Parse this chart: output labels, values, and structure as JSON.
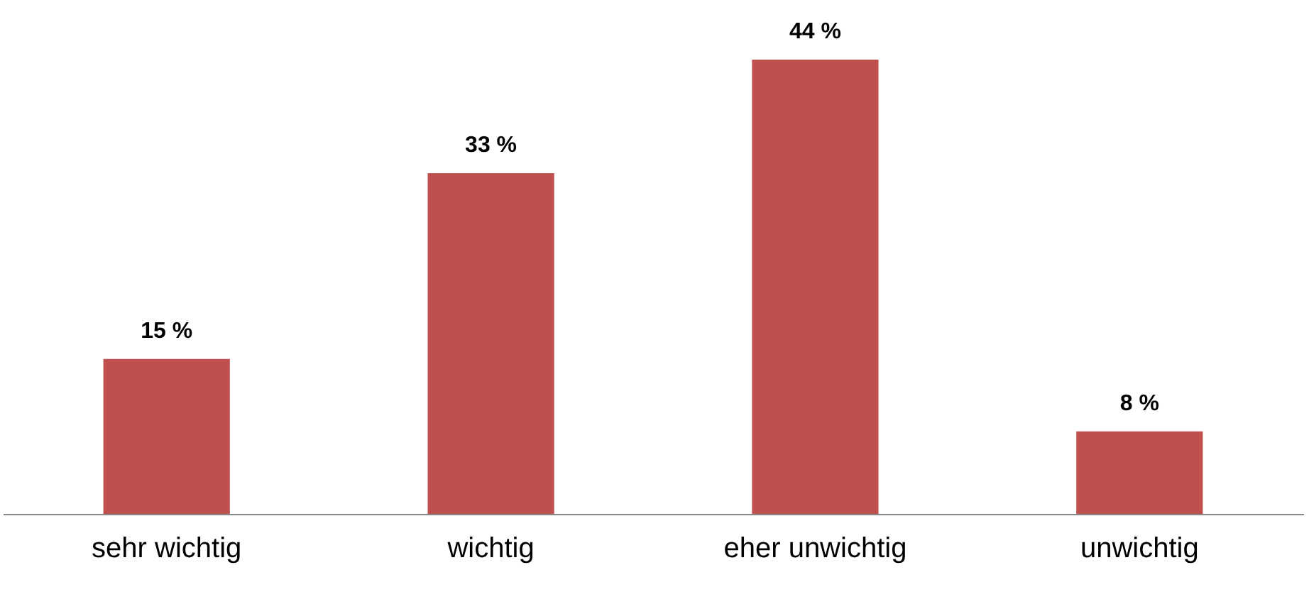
{
  "chart_data": {
    "type": "bar",
    "categories": [
      "sehr wichtig",
      "wichtig",
      "eher unwichtig",
      "unwichtig"
    ],
    "values": [
      15,
      33,
      44,
      8
    ],
    "value_labels": [
      "15 %",
      "33 %",
      "44 %",
      "8 %"
    ],
    "color": "#c0504d",
    "grid": false
  }
}
